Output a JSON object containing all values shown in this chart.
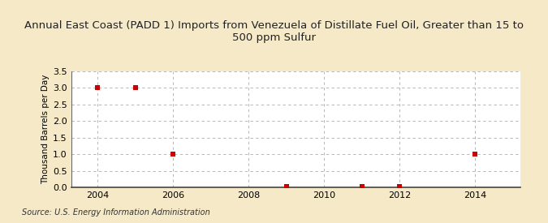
{
  "title": "Annual East Coast (PADD 1) Imports from Venezuela of Distillate Fuel Oil, Greater than 15 to\n500 ppm Sulfur",
  "ylabel": "Thousand Barrels per Day",
  "source": "Source: U.S. Energy Information Administration",
  "data_years": [
    2004,
    2005,
    2006,
    2009,
    2011,
    2012,
    2014
  ],
  "data_values": [
    3.0,
    3.0,
    1.0,
    0.02,
    0.02,
    0.02,
    1.0
  ],
  "xlim": [
    2003.3,
    2015.2
  ],
  "ylim": [
    0.0,
    3.5
  ],
  "yticks": [
    0.0,
    0.5,
    1.0,
    1.5,
    2.0,
    2.5,
    3.0,
    3.5
  ],
  "xticks": [
    2004,
    2006,
    2008,
    2010,
    2012,
    2014
  ],
  "marker_color": "#cc0000",
  "marker_size": 4,
  "background_color": "#f5e9c8",
  "plot_bg_color": "#ffffff",
  "grid_color": "#aaaaaa",
  "title_fontsize": 9.5,
  "axis_label_fontsize": 7.5,
  "tick_fontsize": 8,
  "source_fontsize": 7
}
